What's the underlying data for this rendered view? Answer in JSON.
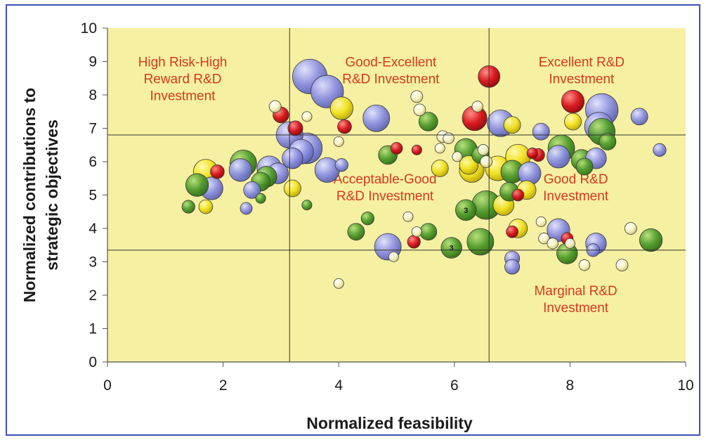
{
  "colors": {
    "plot_bg": "#f6f0a2",
    "grid": "#333333",
    "blue": "#8c90e0",
    "green": "#4e9a2a",
    "yellow": "#f2e21e",
    "red": "#d8101a",
    "light_yellow": "#fbf6c8",
    "zone_text": "#d63a1e"
  },
  "chart_data": {
    "type": "scatter",
    "title": "",
    "xlabel": "Normalized feasibility",
    "ylabel_line1": "Normalized contributions to",
    "ylabel_line2": "strategic objectives",
    "xlim": [
      0,
      10
    ],
    "ylim": [
      0,
      10
    ],
    "x_ticks": [
      "0",
      "2",
      "4",
      "6",
      "8",
      "10"
    ],
    "y_ticks": [
      "0",
      "1",
      "2",
      "3",
      "4",
      "5",
      "6",
      "7",
      "8",
      "9",
      "10"
    ],
    "divider_x": [
      3.15,
      6.6
    ],
    "divider_y": [
      3.35,
      6.8
    ],
    "zones": [
      {
        "lines": [
          "High Risk-High",
          "Reward R&D",
          "Investment"
        ],
        "x": 1.3,
        "y": 8.85
      },
      {
        "lines": [
          "Good-Excellent",
          "R&D Investment"
        ],
        "x": 4.9,
        "y": 8.85
      },
      {
        "lines": [
          "Excellent R&D",
          "Investment"
        ],
        "x": 8.2,
        "y": 8.85
      },
      {
        "lines": [
          "Acceptable-Good",
          "R&D Investment"
        ],
        "x": 4.8,
        "y": 5.35
      },
      {
        "lines": [
          "Good R&D",
          "Investment"
        ],
        "x": 8.1,
        "y": 5.35
      },
      {
        "lines": [
          "Marginal R&D",
          "Investment"
        ],
        "x": 8.1,
        "y": 2.0
      }
    ],
    "bubble_labels": [
      {
        "text": "3",
        "x": 6.2,
        "y": 4.55
      },
      {
        "text": "3",
        "x": 5.95,
        "y": 3.42
      }
    ],
    "points": [
      {
        "x": 3.5,
        "y": 8.55,
        "s": 2.8,
        "c": "blue"
      },
      {
        "x": 3.8,
        "y": 8.1,
        "s": 2.6,
        "c": "blue"
      },
      {
        "x": 4.05,
        "y": 7.6,
        "s": 1.6,
        "c": "yellow"
      },
      {
        "x": 4.65,
        "y": 7.3,
        "s": 2.0,
        "c": "blue"
      },
      {
        "x": 3.25,
        "y": 7.0,
        "s": 0.8,
        "c": "red"
      },
      {
        "x": 3.0,
        "y": 7.4,
        "s": 0.9,
        "c": "red"
      },
      {
        "x": 3.15,
        "y": 6.8,
        "s": 2.0,
        "c": "blue"
      },
      {
        "x": 3.45,
        "y": 6.4,
        "s": 2.4,
        "c": "blue"
      },
      {
        "x": 3.35,
        "y": 6.3,
        "s": 1.8,
        "c": "blue"
      },
      {
        "x": 3.2,
        "y": 6.1,
        "s": 1.4,
        "c": "blue"
      },
      {
        "x": 3.8,
        "y": 5.75,
        "s": 1.8,
        "c": "blue"
      },
      {
        "x": 4.1,
        "y": 7.05,
        "s": 0.7,
        "c": "red"
      },
      {
        "x": 4.05,
        "y": 5.9,
        "s": 0.6,
        "c": "blue"
      },
      {
        "x": 3.2,
        "y": 5.2,
        "s": 1.0,
        "c": "yellow"
      },
      {
        "x": 2.35,
        "y": 5.95,
        "s": 2.0,
        "c": "green"
      },
      {
        "x": 2.3,
        "y": 5.75,
        "s": 1.6,
        "c": "blue"
      },
      {
        "x": 2.8,
        "y": 5.8,
        "s": 1.8,
        "c": "blue"
      },
      {
        "x": 2.95,
        "y": 5.65,
        "s": 1.4,
        "c": "blue"
      },
      {
        "x": 2.75,
        "y": 5.55,
        "s": 1.4,
        "c": "green"
      },
      {
        "x": 2.65,
        "y": 5.4,
        "s": 1.2,
        "c": "green"
      },
      {
        "x": 2.5,
        "y": 5.15,
        "s": 1.0,
        "c": "blue"
      },
      {
        "x": 1.7,
        "y": 5.7,
        "s": 1.8,
        "c": "yellow"
      },
      {
        "x": 1.9,
        "y": 5.7,
        "s": 0.7,
        "c": "red"
      },
      {
        "x": 1.8,
        "y": 5.2,
        "s": 1.6,
        "c": "blue"
      },
      {
        "x": 1.55,
        "y": 5.3,
        "s": 1.6,
        "c": "green"
      },
      {
        "x": 1.4,
        "y": 4.65,
        "s": 0.6,
        "c": "green"
      },
      {
        "x": 1.7,
        "y": 4.65,
        "s": 0.7,
        "c": "yellow"
      },
      {
        "x": 2.4,
        "y": 4.6,
        "s": 0.5,
        "c": "blue"
      },
      {
        "x": 2.9,
        "y": 7.65,
        "s": 0.5,
        "c": "light_yellow"
      },
      {
        "x": 4.85,
        "y": 6.2,
        "s": 1.2,
        "c": "green"
      },
      {
        "x": 5.0,
        "y": 6.4,
        "s": 0.5,
        "c": "red"
      },
      {
        "x": 5.55,
        "y": 7.2,
        "s": 1.2,
        "c": "green"
      },
      {
        "x": 5.35,
        "y": 7.95,
        "s": 0.5,
        "c": "light_yellow"
      },
      {
        "x": 5.4,
        "y": 7.55,
        "s": 0.5,
        "c": "light_yellow"
      },
      {
        "x": 5.75,
        "y": 5.8,
        "s": 1.0,
        "c": "yellow"
      },
      {
        "x": 5.35,
        "y": 6.35,
        "s": 0.3,
        "c": "red"
      },
      {
        "x": 6.35,
        "y": 7.3,
        "s": 1.8,
        "c": "red"
      },
      {
        "x": 6.6,
        "y": 8.55,
        "s": 1.5,
        "c": "red"
      },
      {
        "x": 6.2,
        "y": 6.35,
        "s": 1.6,
        "c": "green"
      },
      {
        "x": 6.25,
        "y": 5.9,
        "s": 1.2,
        "c": "yellow"
      },
      {
        "x": 6.3,
        "y": 5.75,
        "s": 1.8,
        "c": "yellow"
      },
      {
        "x": 6.45,
        "y": 6.2,
        "s": 1.0,
        "c": "green"
      },
      {
        "x": 6.55,
        "y": 6.0,
        "s": 0.5,
        "c": "light_yellow"
      },
      {
        "x": 6.2,
        "y": 4.55,
        "s": 1.4,
        "c": "green"
      },
      {
        "x": 6.55,
        "y": 4.7,
        "s": 2.2,
        "c": "green"
      },
      {
        "x": 6.45,
        "y": 3.6,
        "s": 2.0,
        "c": "green"
      },
      {
        "x": 5.95,
        "y": 3.42,
        "s": 1.4,
        "c": "green"
      },
      {
        "x": 5.55,
        "y": 3.9,
        "s": 1.0,
        "c": "green"
      },
      {
        "x": 4.85,
        "y": 3.45,
        "s": 2.0,
        "c": "blue"
      },
      {
        "x": 4.3,
        "y": 3.9,
        "s": 1.0,
        "c": "green"
      },
      {
        "x": 4.5,
        "y": 4.3,
        "s": 0.6,
        "c": "green"
      },
      {
        "x": 5.3,
        "y": 3.6,
        "s": 0.6,
        "c": "red"
      },
      {
        "x": 4.0,
        "y": 2.35,
        "s": 0.3,
        "c": "light_yellow"
      },
      {
        "x": 6.8,
        "y": 7.15,
        "s": 2.0,
        "c": "blue"
      },
      {
        "x": 6.75,
        "y": 5.8,
        "s": 1.8,
        "c": "yellow"
      },
      {
        "x": 7.1,
        "y": 6.15,
        "s": 1.8,
        "c": "yellow"
      },
      {
        "x": 7.0,
        "y": 5.7,
        "s": 1.6,
        "c": "green"
      },
      {
        "x": 7.3,
        "y": 5.65,
        "s": 1.6,
        "c": "blue"
      },
      {
        "x": 7.45,
        "y": 6.2,
        "s": 0.6,
        "c": "red"
      },
      {
        "x": 7.5,
        "y": 6.9,
        "s": 1.0,
        "c": "blue"
      },
      {
        "x": 7.0,
        "y": 7.1,
        "s": 1.0,
        "c": "yellow"
      },
      {
        "x": 6.95,
        "y": 5.1,
        "s": 1.2,
        "c": "green"
      },
      {
        "x": 7.25,
        "y": 5.15,
        "s": 1.2,
        "c": "yellow"
      },
      {
        "x": 7.1,
        "y": 5.0,
        "s": 0.5,
        "c": "red"
      },
      {
        "x": 6.85,
        "y": 4.7,
        "s": 1.4,
        "c": "yellow"
      },
      {
        "x": 7.1,
        "y": 4.0,
        "s": 1.2,
        "c": "yellow"
      },
      {
        "x": 7.0,
        "y": 3.9,
        "s": 0.5,
        "c": "red"
      },
      {
        "x": 7.0,
        "y": 3.1,
        "s": 0.8,
        "c": "blue"
      },
      {
        "x": 7.0,
        "y": 2.85,
        "s": 0.8,
        "c": "blue"
      },
      {
        "x": 8.05,
        "y": 7.8,
        "s": 1.6,
        "c": "red"
      },
      {
        "x": 8.05,
        "y": 7.2,
        "s": 1.0,
        "c": "yellow"
      },
      {
        "x": 8.55,
        "y": 7.55,
        "s": 2.6,
        "c": "blue"
      },
      {
        "x": 8.5,
        "y": 7.05,
        "s": 2.2,
        "c": "blue"
      },
      {
        "x": 8.55,
        "y": 6.9,
        "s": 2.0,
        "c": "green"
      },
      {
        "x": 8.65,
        "y": 6.6,
        "s": 1.0,
        "c": "green"
      },
      {
        "x": 9.2,
        "y": 7.35,
        "s": 1.0,
        "c": "blue"
      },
      {
        "x": 7.85,
        "y": 6.4,
        "s": 2.0,
        "c": "green"
      },
      {
        "x": 7.8,
        "y": 6.15,
        "s": 1.6,
        "c": "blue"
      },
      {
        "x": 8.2,
        "y": 6.05,
        "s": 1.4,
        "c": "green"
      },
      {
        "x": 8.45,
        "y": 6.1,
        "s": 1.4,
        "c": "blue"
      },
      {
        "x": 8.25,
        "y": 5.85,
        "s": 1.0,
        "c": "green"
      },
      {
        "x": 9.55,
        "y": 6.35,
        "s": 0.6,
        "c": "blue"
      },
      {
        "x": 7.8,
        "y": 3.95,
        "s": 1.6,
        "c": "blue"
      },
      {
        "x": 7.95,
        "y": 3.25,
        "s": 1.4,
        "c": "green"
      },
      {
        "x": 8.45,
        "y": 3.55,
        "s": 1.4,
        "c": "blue"
      },
      {
        "x": 8.4,
        "y": 3.35,
        "s": 0.6,
        "c": "blue"
      },
      {
        "x": 9.4,
        "y": 3.65,
        "s": 1.6,
        "c": "green"
      },
      {
        "x": 7.95,
        "y": 3.7,
        "s": 0.5,
        "c": "red"
      },
      {
        "x": 9.05,
        "y": 4.0,
        "s": 0.5,
        "c": "light_yellow"
      },
      {
        "x": 8.9,
        "y": 2.9,
        "s": 0.5,
        "c": "light_yellow"
      },
      {
        "x": 8.25,
        "y": 2.9,
        "s": 0.4,
        "c": "light_yellow"
      },
      {
        "x": 7.55,
        "y": 3.7,
        "s": 0.4,
        "c": "light_yellow"
      },
      {
        "x": 7.7,
        "y": 3.55,
        "s": 0.4,
        "c": "light_yellow"
      },
      {
        "x": 3.45,
        "y": 4.7,
        "s": 0.3,
        "c": "green"
      },
      {
        "x": 2.65,
        "y": 4.9,
        "s": 0.3,
        "c": "green"
      },
      {
        "x": 3.45,
        "y": 7.35,
        "s": 0.3,
        "c": "light_yellow"
      },
      {
        "x": 4.0,
        "y": 6.6,
        "s": 0.3,
        "c": "light_yellow"
      },
      {
        "x": 5.8,
        "y": 6.75,
        "s": 0.5,
        "c": "light_yellow"
      },
      {
        "x": 5.9,
        "y": 6.7,
        "s": 0.4,
        "c": "light_yellow"
      },
      {
        "x": 5.75,
        "y": 6.4,
        "s": 0.3,
        "c": "light_yellow"
      },
      {
        "x": 6.5,
        "y": 6.35,
        "s": 0.4,
        "c": "light_yellow"
      },
      {
        "x": 6.05,
        "y": 6.15,
        "s": 0.3,
        "c": "light_yellow"
      },
      {
        "x": 5.2,
        "y": 4.35,
        "s": 0.3,
        "c": "light_yellow"
      },
      {
        "x": 5.35,
        "y": 3.9,
        "s": 0.3,
        "c": "light_yellow"
      },
      {
        "x": 7.5,
        "y": 4.2,
        "s": 0.3,
        "c": "light_yellow"
      },
      {
        "x": 6.4,
        "y": 7.65,
        "s": 0.4,
        "c": "light_yellow"
      },
      {
        "x": 4.95,
        "y": 3.15,
        "s": 0.3,
        "c": "light_yellow"
      },
      {
        "x": 7.35,
        "y": 6.25,
        "s": 0.4,
        "c": "red"
      },
      {
        "x": 8.0,
        "y": 3.55,
        "s": 0.3,
        "c": "light_yellow"
      }
    ]
  }
}
